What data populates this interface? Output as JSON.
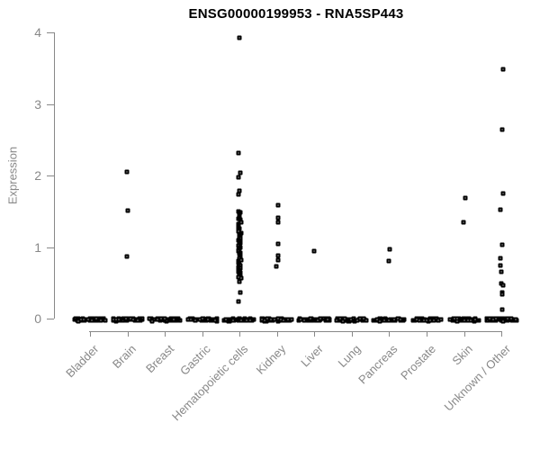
{
  "title": "ENSG00000199953 - RNA5SP443",
  "colors": {
    "background": "#ffffff",
    "axis": "#888888",
    "tick_text": "#888888",
    "title_text": "#000000",
    "point_border": "#000000",
    "point_fill": "#ffffff"
  },
  "chart_data": {
    "type": "scatter",
    "subtype": "strip-plot-by-category",
    "title": "ENSG00000199953 - RNA5SP443",
    "xlabel": "",
    "ylabel": "Expression",
    "ylim": [
      0,
      4
    ],
    "yticks": [
      0,
      1,
      2,
      3,
      4
    ],
    "grid": false,
    "legend": false,
    "marker": "small-open-square",
    "categories": [
      "Bladder",
      "Brain",
      "Breast",
      "Gastric",
      "Hematopoietic cells",
      "Kidney",
      "Liver",
      "Lung",
      "Pancreas",
      "Prostate",
      "Skin",
      "Unknown / Other"
    ],
    "series": [
      {
        "name": "sample expression values",
        "points_by_category": [
          {
            "category": "Bladder",
            "nonzero_values": [],
            "zero_count": 45
          },
          {
            "category": "Brain",
            "nonzero_values": [
              2.05,
              1.51,
              0.87
            ],
            "zero_count": 45
          },
          {
            "category": "Breast",
            "nonzero_values": [],
            "zero_count": 45
          },
          {
            "category": "Gastric",
            "nonzero_values": [],
            "zero_count": 45
          },
          {
            "category": "Hematopoietic cells",
            "nonzero_values": [
              3.92,
              2.31,
              2.04,
              1.97,
              1.79,
              1.73,
              1.5,
              1.48,
              1.46,
              1.44,
              1.42,
              1.4,
              1.38,
              1.36,
              1.34,
              1.32,
              1.3,
              1.28,
              1.26,
              1.24,
              1.22,
              1.2,
              1.18,
              1.16,
              1.14,
              1.12,
              1.1,
              1.08,
              1.06,
              1.04,
              1.02,
              1.0,
              0.98,
              0.96,
              0.94,
              0.92,
              0.9,
              0.88,
              0.86,
              0.84,
              0.82,
              0.8,
              0.78,
              0.76,
              0.74,
              0.72,
              0.7,
              0.68,
              0.66,
              0.64,
              0.62,
              0.6,
              0.58,
              0.56,
              0.52,
              0.36,
              0.24
            ],
            "zero_count": 45
          },
          {
            "category": "Kidney",
            "nonzero_values": [
              1.59,
              1.41,
              1.35,
              1.05,
              0.88,
              0.82,
              0.73
            ],
            "zero_count": 45
          },
          {
            "category": "Liver",
            "nonzero_values": [
              0.94
            ],
            "zero_count": 45
          },
          {
            "category": "Lung",
            "nonzero_values": [],
            "zero_count": 45
          },
          {
            "category": "Pancreas",
            "nonzero_values": [
              0.97,
              0.81
            ],
            "zero_count": 45
          },
          {
            "category": "Prostate",
            "nonzero_values": [],
            "zero_count": 45
          },
          {
            "category": "Skin",
            "nonzero_values": [
              1.68,
              1.34
            ],
            "zero_count": 45
          },
          {
            "category": "Unknown / Other",
            "nonzero_values": [
              3.49,
              2.64,
              1.75,
              1.52,
              1.03,
              0.84,
              0.74,
              0.66,
              0.49,
              0.46,
              0.37,
              0.34,
              0.13
            ],
            "zero_count": 45
          }
        ]
      }
    ]
  }
}
